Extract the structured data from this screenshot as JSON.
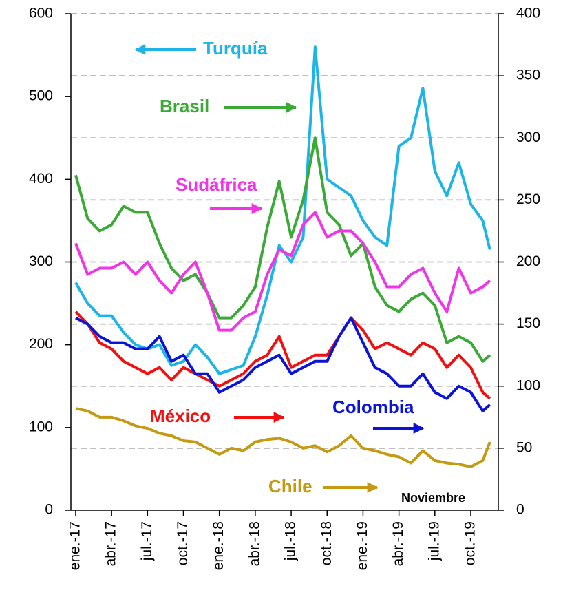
{
  "chart_data": {
    "type": "line",
    "x": [
      0,
      1,
      2,
      3,
      4,
      5,
      6,
      7,
      8,
      9,
      10,
      11,
      12,
      13,
      14,
      15,
      16,
      17,
      18,
      19,
      20,
      21,
      22,
      23,
      24,
      25,
      26,
      27,
      28,
      29,
      30,
      31,
      32,
      33,
      34,
      34.6
    ],
    "xlim": [
      -0.4,
      35.3
    ],
    "xticks": [
      {
        "value": 0,
        "label": "ene.-17"
      },
      {
        "value": 3,
        "label": "abr.-17"
      },
      {
        "value": 6,
        "label": "jul.-17"
      },
      {
        "value": 9,
        "label": "oct.-17"
      },
      {
        "value": 12,
        "label": "ene.-18"
      },
      {
        "value": 15,
        "label": "abr.-18"
      },
      {
        "value": 18,
        "label": "jul.-18"
      },
      {
        "value": 21,
        "label": "oct.-18"
      },
      {
        "value": 24,
        "label": "ene.-19"
      },
      {
        "value": 27,
        "label": "abr.-19"
      },
      {
        "value": 30,
        "label": "jul.-19"
      },
      {
        "value": 33,
        "label": "oct.-19"
      }
    ],
    "ylim": [
      0,
      600
    ],
    "yticks": [
      0,
      100,
      200,
      300,
      400,
      500,
      600
    ],
    "y2lim": [
      0,
      400
    ],
    "y2ticks": [
      0,
      50,
      100,
      150,
      200,
      250,
      300,
      350,
      400
    ],
    "grid": true,
    "annotation": "Noviembre",
    "series": [
      {
        "name": "Turquía",
        "color": "#1fb4e6",
        "axis": "y",
        "values": [
          275,
          250,
          235,
          235,
          215,
          200,
          195,
          200,
          175,
          180,
          200,
          185,
          165,
          170,
          175,
          210,
          260,
          320,
          300,
          330,
          560,
          400,
          390,
          380,
          350,
          330,
          320,
          440,
          450,
          510,
          410,
          380,
          420,
          370,
          350,
          315
        ]
      },
      {
        "name": "Brasil",
        "color": "#3aa935",
        "axis": "y2",
        "values": [
          270,
          235,
          225,
          230,
          245,
          240,
          240,
          215,
          195,
          185,
          190,
          175,
          155,
          155,
          165,
          180,
          228,
          265,
          220,
          250,
          300,
          240,
          230,
          205,
          215,
          180,
          165,
          160,
          170,
          175,
          165,
          135,
          140,
          135,
          120,
          125
        ]
      },
      {
        "name": "Sudáfrica",
        "color": "#f035e6",
        "axis": "y2",
        "values": [
          215,
          190,
          195,
          195,
          200,
          190,
          200,
          185,
          175,
          190,
          200,
          175,
          145,
          145,
          155,
          160,
          190,
          210,
          205,
          230,
          240,
          220,
          225,
          225,
          215,
          200,
          180,
          180,
          190,
          195,
          175,
          160,
          195,
          175,
          180,
          185
        ]
      },
      {
        "name": "México",
        "color": "#f01010",
        "axis": "y2",
        "values": [
          160,
          150,
          135,
          130,
          120,
          115,
          110,
          115,
          105,
          115,
          110,
          105,
          100,
          105,
          110,
          120,
          125,
          140,
          115,
          120,
          125,
          125,
          140,
          155,
          145,
          130,
          135,
          130,
          125,
          135,
          130,
          115,
          125,
          115,
          95,
          90
        ]
      },
      {
        "name": "Colombia",
        "color": "#0a14d8",
        "axis": "y2",
        "values": [
          155,
          150,
          140,
          135,
          135,
          130,
          130,
          140,
          120,
          125,
          110,
          110,
          95,
          100,
          105,
          115,
          120,
          125,
          110,
          115,
          120,
          120,
          140,
          155,
          135,
          115,
          110,
          100,
          100,
          110,
          95,
          90,
          100,
          95,
          80,
          85
        ]
      },
      {
        "name": "Chile",
        "color": "#c39a12",
        "axis": "y2",
        "values": [
          82,
          80,
          75,
          75,
          72,
          68,
          66,
          62,
          60,
          56,
          55,
          50,
          45,
          50,
          48,
          55,
          57,
          58,
          55,
          50,
          52,
          47,
          52,
          60,
          50,
          48,
          45,
          43,
          38,
          48,
          40,
          38,
          37,
          35,
          40,
          55
        ]
      }
    ]
  }
}
